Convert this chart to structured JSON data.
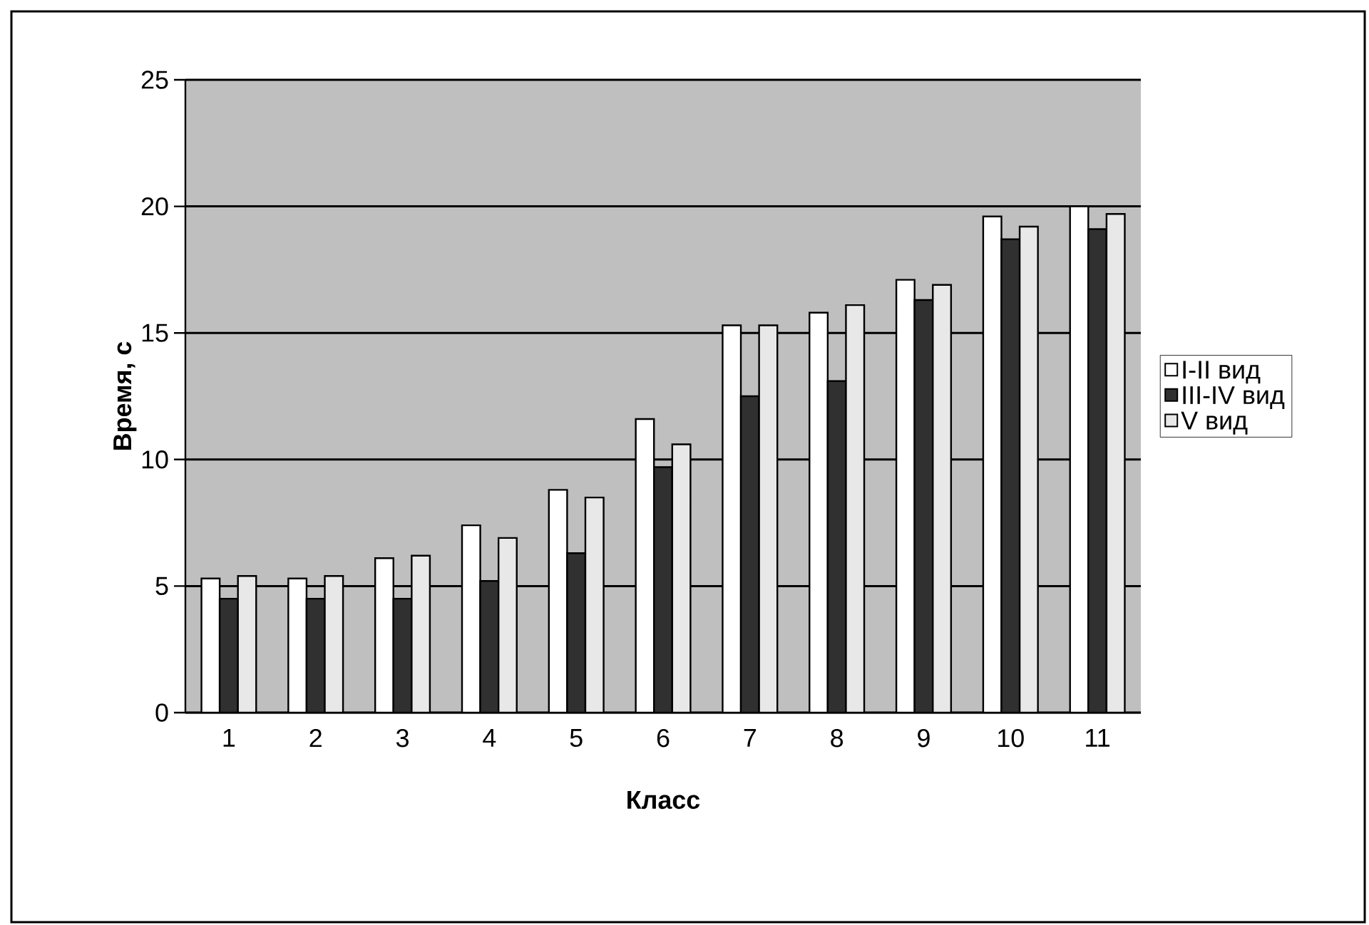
{
  "chart_data": {
    "type": "bar",
    "xlabel": "Класс",
    "ylabel": "Время, с",
    "categories": [
      "1",
      "2",
      "3",
      "4",
      "5",
      "6",
      "7",
      "8",
      "9",
      "10",
      "11"
    ],
    "series": [
      {
        "name": "I-II вид",
        "color": "#ffffff",
        "values": [
          5.3,
          5.3,
          6.1,
          7.4,
          8.8,
          11.6,
          15.3,
          15.8,
          17.1,
          19.6,
          20.0
        ]
      },
      {
        "name": "III-IV вид",
        "color": "#303030",
        "values": [
          4.5,
          4.5,
          4.5,
          5.2,
          6.3,
          9.7,
          12.5,
          13.1,
          16.3,
          18.7,
          19.1
        ]
      },
      {
        "name": "V вид",
        "color": "#e8e8e8",
        "values": [
          5.4,
          5.4,
          6.2,
          6.9,
          8.5,
          10.6,
          15.3,
          16.1,
          16.9,
          19.2,
          19.7
        ]
      }
    ],
    "ylim": [
      0,
      25
    ],
    "yticks": [
      0,
      5,
      10,
      15,
      20,
      25
    ],
    "grid": "y",
    "legend": "right"
  }
}
